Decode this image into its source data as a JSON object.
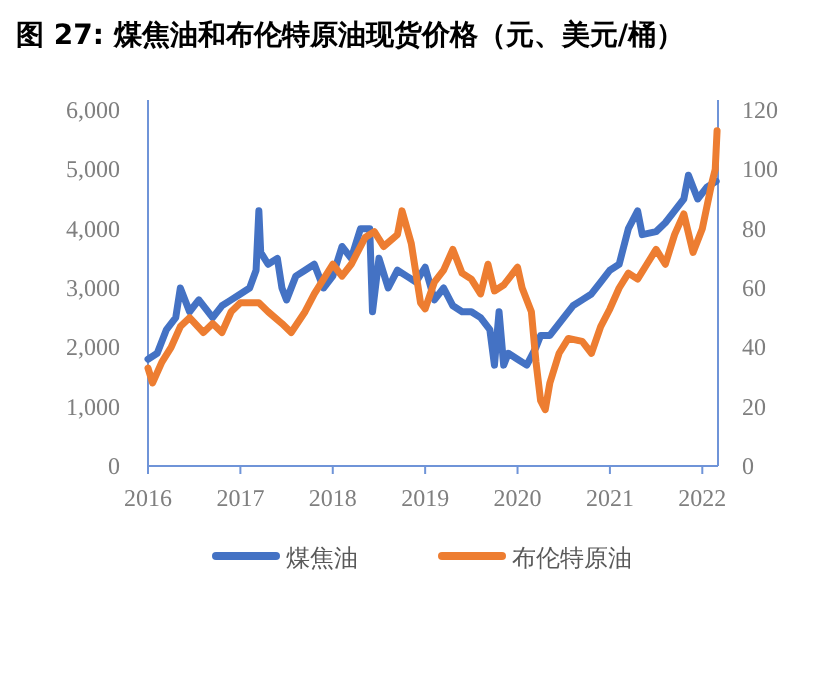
{
  "chart_data": {
    "type": "line",
    "title": "图 27: 煤焦油和布伦特原油现货价格（元、美元/桶）",
    "xlim": [
      2016,
      2022.17
    ],
    "xticks": [
      2016,
      2017,
      2018,
      2019,
      2020,
      2021,
      2022
    ],
    "ylim": [
      0,
      6000
    ],
    "yticks": [
      {
        "value": 0,
        "label": "0"
      },
      {
        "value": 1000,
        "label": "1,000"
      },
      {
        "value": 2000,
        "label": "2,000"
      },
      {
        "value": 3000,
        "label": "3,000"
      },
      {
        "value": 4000,
        "label": "4,000"
      },
      {
        "value": 5000,
        "label": "5,000"
      },
      {
        "value": 6000,
        "label": "6,000"
      }
    ],
    "y2lim": [
      0,
      120
    ],
    "y2ticks": [
      0,
      20,
      40,
      60,
      80,
      100,
      120
    ],
    "legend": "bottom",
    "grid": false,
    "series": [
      {
        "name": "煤焦油",
        "color": "#4472c4",
        "x": [
          2016.0,
          2016.1,
          2016.2,
          2016.3,
          2016.35,
          2016.45,
          2016.55,
          2016.7,
          2016.8,
          2016.9,
          2017.0,
          2017.1,
          2017.17,
          2017.2,
          2017.22,
          2017.3,
          2017.4,
          2017.45,
          2017.5,
          2017.6,
          2017.7,
          2017.8,
          2017.9,
          2018.0,
          2018.1,
          2018.2,
          2018.3,
          2018.4,
          2018.43,
          2018.5,
          2018.6,
          2018.7,
          2018.8,
          2018.9,
          2019.0,
          2019.1,
          2019.2,
          2019.3,
          2019.4,
          2019.5,
          2019.6,
          2019.7,
          2019.75,
          2019.8,
          2019.85,
          2019.9,
          2020.0,
          2020.1,
          2020.2,
          2020.25,
          2020.35,
          2020.5,
          2020.6,
          2020.7,
          2020.8,
          2020.9,
          2021.0,
          2021.1,
          2021.2,
          2021.3,
          2021.35,
          2021.5,
          2021.6,
          2021.7,
          2021.8,
          2021.85,
          2021.95,
          2022.05,
          2022.15
        ],
        "values": [
          1800,
          1900,
          2300,
          2500,
          3000,
          2600,
          2800,
          2500,
          2700,
          2800,
          2900,
          3000,
          3300,
          4300,
          3600,
          3400,
          3500,
          3000,
          2800,
          3200,
          3300,
          3400,
          3000,
          3200,
          3700,
          3500,
          4000,
          4000,
          2600,
          3500,
          3000,
          3300,
          3200,
          3100,
          3350,
          2800,
          3000,
          2700,
          2600,
          2600,
          2500,
          2300,
          1700,
          2600,
          1700,
          1900,
          1800,
          1700,
          2000,
          2200,
          2200,
          2500,
          2700,
          2800,
          2900,
          3100,
          3300,
          3400,
          4000,
          4300,
          3900,
          3950,
          4100,
          4300,
          4500,
          4900,
          4500,
          4700,
          4800
        ]
      },
      {
        "name": "布伦特原油",
        "color": "#ed7d31",
        "axis": "y2",
        "x": [
          2016.0,
          2016.05,
          2016.15,
          2016.25,
          2016.35,
          2016.45,
          2016.6,
          2016.7,
          2016.8,
          2016.9,
          2017.0,
          2017.2,
          2017.3,
          2017.45,
          2017.55,
          2017.7,
          2017.8,
          2017.9,
          2018.0,
          2018.1,
          2018.2,
          2018.35,
          2018.45,
          2018.55,
          2018.7,
          2018.75,
          2018.85,
          2018.95,
          2019.0,
          2019.1,
          2019.2,
          2019.3,
          2019.4,
          2019.5,
          2019.6,
          2019.68,
          2019.75,
          2019.85,
          2020.0,
          2020.05,
          2020.15,
          2020.2,
          2020.25,
          2020.3,
          2020.35,
          2020.45,
          2020.55,
          2020.7,
          2020.8,
          2020.9,
          2021.0,
          2021.1,
          2021.2,
          2021.3,
          2021.4,
          2021.5,
          2021.6,
          2021.7,
          2021.8,
          2021.9,
          2022.0,
          2022.1,
          2022.14,
          2022.16
        ],
        "values": [
          33,
          28,
          35,
          40,
          47,
          50,
          45,
          48,
          45,
          52,
          55,
          55,
          52,
          48,
          45,
          52,
          58,
          63,
          68,
          64,
          68,
          77,
          79,
          74,
          78,
          86,
          75,
          55,
          53,
          62,
          66,
          73,
          65,
          63,
          58,
          68,
          59,
          61,
          67,
          60,
          52,
          35,
          22,
          19,
          28,
          38,
          43,
          42,
          38,
          47,
          53,
          60,
          65,
          63,
          68,
          73,
          68,
          78,
          85,
          72,
          80,
          95,
          100,
          113
        ]
      }
    ]
  }
}
